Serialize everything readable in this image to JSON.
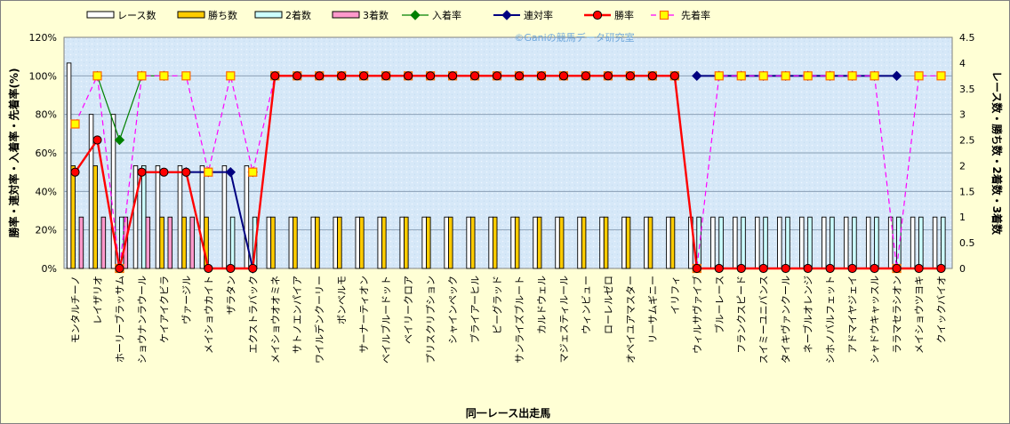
{
  "chart_data": {
    "type": "bar",
    "watermark": "©Ganiの競馬データ研究室",
    "xlabel": "同一レース出走馬",
    "ylabel_left": "勝率・連対率・入着率・先着率(%)",
    "ylabel_right": "レース数・勝ち数・2着数・3着数",
    "ylim_left": [
      0,
      120
    ],
    "ylim_right": [
      0,
      4.5
    ],
    "yticks_left": [
      "0%",
      "20%",
      "40%",
      "60%",
      "80%",
      "100%",
      "120%"
    ],
    "yticks_right": [
      "0",
      "0.5",
      "1",
      "1.5",
      "2",
      "2.5",
      "3",
      "3.5",
      "4",
      "4.5"
    ],
    "grid": true,
    "legend_position": "top",
    "colors": {
      "races": "#FFFFFF",
      "wins": "#FFCC00",
      "second": "#CCFFFF",
      "third": "#FF99CC",
      "show_rate": "#008000",
      "quinella_rate": "#000080",
      "win_rate": "#FF0000",
      "finish_ahead_rate": "#FF00FF",
      "finish_ahead_marker": "#FFFF00",
      "plot_bg": "#D6E8F8",
      "grid": "#8a9fb5"
    },
    "categories": [
      "モンタルチーノ",
      "レイザリオ",
      "ホーリーブラッサム",
      "ショウナンラウール",
      "ケイアイクビラ",
      "ヴァージル",
      "メイショウカイト",
      "ザラタン",
      "エクストラバック",
      "メイショウオオミネ",
      "サトノエンパイア",
      "ワイルデンクーリー",
      "ボンベルモ",
      "サーナーティオン",
      "ベイルブルードット",
      "ベイリークロア",
      "プリスクリプション",
      "シャインペック",
      "ブライアーヒル",
      "ピーグラッド",
      "サンライズブルート",
      "カルドウェル",
      "マジェスティルール",
      "ウィンビュー",
      "ローレルゼロ",
      "オペイユアマスター",
      "リーサムギニー",
      "イリフィ",
      "ウィルサヴァイブ",
      "ブルーレース",
      "フランクスピード",
      "スイミーユニバンス",
      "タイキヴァンクール",
      "ネーブルオレンジ",
      "シホノバルフェット",
      "アドマイヤジェイ",
      "シャドウキャッスル",
      "ララマセラシオン",
      "メイショウツヨキ",
      "クイックバイオ"
    ],
    "series": [
      {
        "name": "レース数",
        "kind": "bar",
        "axis": "right",
        "values": [
          4,
          3,
          3,
          2,
          2,
          2,
          2,
          2,
          2,
          1,
          1,
          1,
          1,
          1,
          1,
          1,
          1,
          1,
          1,
          1,
          1,
          1,
          1,
          1,
          1,
          1,
          1,
          1,
          1,
          1,
          1,
          1,
          1,
          1,
          1,
          1,
          1,
          1,
          1,
          1
        ]
      },
      {
        "name": "勝ち数",
        "kind": "bar",
        "axis": "right",
        "values": [
          2,
          2,
          0,
          0,
          1,
          1,
          1,
          0,
          0,
          1,
          1,
          1,
          1,
          1,
          1,
          1,
          1,
          1,
          1,
          1,
          1,
          1,
          1,
          1,
          1,
          1,
          1,
          1,
          0,
          0,
          0,
          0,
          0,
          0,
          0,
          0,
          0,
          0,
          0,
          0
        ]
      },
      {
        "name": "2着数",
        "kind": "bar",
        "axis": "right",
        "values": [
          0,
          0,
          1,
          2,
          0,
          0,
          0,
          1,
          1,
          0,
          0,
          0,
          0,
          0,
          0,
          0,
          0,
          0,
          0,
          0,
          0,
          0,
          0,
          0,
          0,
          0,
          0,
          0,
          1,
          1,
          1,
          1,
          1,
          1,
          1,
          1,
          1,
          1,
          1,
          1
        ]
      },
      {
        "name": "3着数",
        "kind": "bar",
        "axis": "right",
        "values": [
          1,
          1,
          1,
          1,
          1,
          1,
          0,
          0,
          0,
          0,
          0,
          0,
          0,
          0,
          0,
          0,
          0,
          0,
          0,
          0,
          0,
          0,
          0,
          0,
          0,
          0,
          0,
          0,
          0,
          0,
          0,
          0,
          0,
          0,
          0,
          0,
          0,
          0,
          0,
          0
        ]
      },
      {
        "name": "入着率",
        "kind": "line",
        "axis": "left",
        "values": [
          null,
          100,
          66.7,
          100,
          100,
          null,
          null,
          null,
          50,
          null,
          null,
          null,
          null,
          null,
          null,
          null,
          null,
          null,
          null,
          null,
          null,
          null,
          null,
          null,
          null,
          null,
          null,
          null,
          null,
          null,
          null,
          null,
          null,
          null,
          null,
          null,
          null,
          null,
          null,
          null
        ]
      },
      {
        "name": "連対率",
        "kind": "line",
        "axis": "left",
        "values": [
          null,
          null,
          null,
          null,
          null,
          50,
          50,
          50,
          0,
          null,
          null,
          null,
          null,
          null,
          null,
          null,
          null,
          null,
          null,
          null,
          null,
          null,
          null,
          null,
          null,
          null,
          null,
          null,
          100,
          100,
          100,
          100,
          100,
          100,
          100,
          100,
          100,
          100,
          null,
          null
        ]
      },
      {
        "name": "勝率",
        "kind": "line",
        "axis": "left",
        "values": [
          50,
          66.7,
          0,
          50,
          50,
          50,
          0,
          0,
          0,
          100,
          100,
          100,
          100,
          100,
          100,
          100,
          100,
          100,
          100,
          100,
          100,
          100,
          100,
          100,
          100,
          100,
          100,
          100,
          0,
          0,
          0,
          0,
          0,
          0,
          0,
          0,
          0,
          0,
          0,
          0
        ]
      },
      {
        "name": "先着率",
        "kind": "line",
        "axis": "left",
        "values": [
          75,
          100,
          0,
          100,
          100,
          100,
          50,
          100,
          50,
          100,
          100,
          100,
          100,
          100,
          100,
          100,
          100,
          100,
          100,
          100,
          100,
          100,
          100,
          100,
          100,
          100,
          100,
          100,
          0,
          100,
          100,
          100,
          100,
          100,
          100,
          100,
          100,
          0,
          100,
          100
        ]
      }
    ]
  }
}
